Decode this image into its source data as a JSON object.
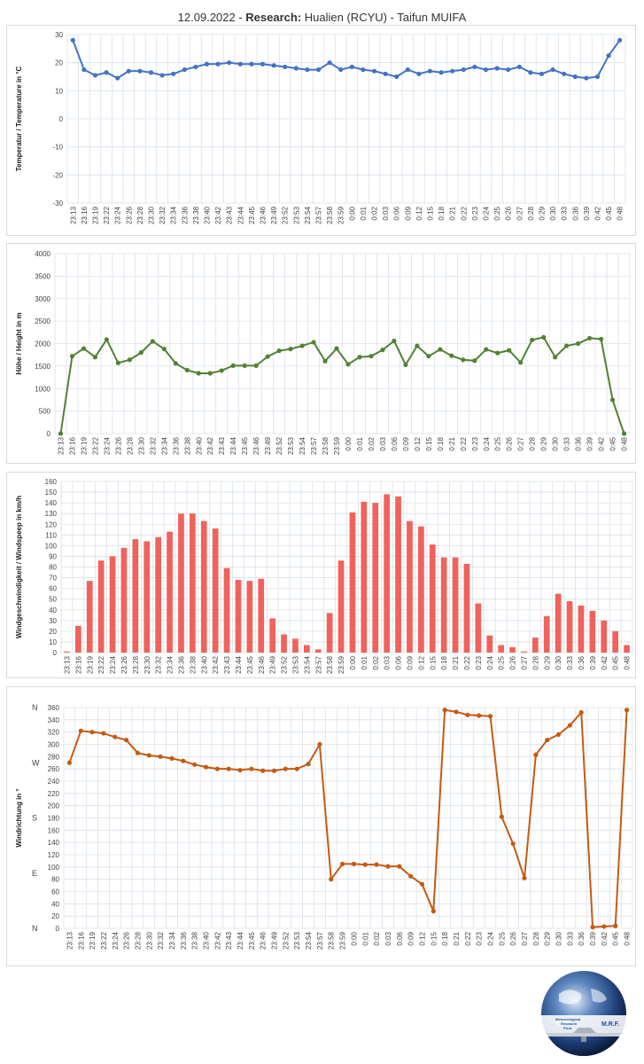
{
  "title": {
    "date": "12.09.2022 - ",
    "bold": "Research:",
    "rest": " Hualien (RCYU) - Taifun MUIFA"
  },
  "logo": {
    "line1": "Meteorological",
    "line2": "Research",
    "line3": "Fleet",
    "abbr": "M.R.F."
  },
  "colors": {
    "temperature": "#4472c4",
    "height": "#538135",
    "speed": "#f0625b",
    "direction": "#c55a11"
  },
  "chart_data": [
    {
      "type": "line",
      "ylabel": "Temperatur / Temperature in °C",
      "ylim": [
        -30,
        30
      ],
      "yticks": [
        -30,
        -20,
        -10,
        0,
        10,
        20,
        30
      ],
      "categories": [
        "23:13",
        "23:16",
        "23:19",
        "23:22",
        "23:24",
        "23:26",
        "23:28",
        "23:30",
        "23:32",
        "23:34",
        "23:36",
        "23:38",
        "23:40",
        "23:42",
        "23:43",
        "23:44",
        "23:45",
        "23:46",
        "23:49",
        "23:52",
        "23:53",
        "23:54",
        "23:57",
        "23:58",
        "23:59",
        "0:00",
        "0:01",
        "0:02",
        "0:03",
        "0:06",
        "0:09",
        "0:12",
        "0:15",
        "0:18",
        "0:21",
        "0:22",
        "0:23",
        "0:24",
        "0:25",
        "0:26",
        "0:27",
        "0:28",
        "0:29",
        "0:30",
        "0:33",
        "0:36",
        "0:39",
        "0:42",
        "0:45",
        "0:48"
      ],
      "values": [
        28,
        17.5,
        15.5,
        16.5,
        14.5,
        17,
        17,
        16.5,
        15.5,
        16,
        17.5,
        18.5,
        19.5,
        19.5,
        20,
        19.5,
        19.5,
        19.5,
        19,
        18.5,
        18,
        17.5,
        17.5,
        20,
        17.5,
        18.5,
        17.5,
        17,
        16,
        15,
        17.5,
        16,
        17,
        16.5,
        17,
        17.5,
        18.5,
        17.5,
        18,
        17.5,
        18.5,
        16.5,
        16,
        17.5,
        16,
        15,
        14.5,
        15,
        22.5,
        28
      ]
    },
    {
      "type": "line",
      "ylabel": "Höhe / Height in m",
      "ylim": [
        0,
        4000
      ],
      "yticks": [
        0,
        500,
        1000,
        1500,
        2000,
        2500,
        3000,
        3500,
        4000
      ],
      "categories": [
        "23:13",
        "23:16",
        "23:19",
        "23:22",
        "23:24",
        "23:26",
        "23:28",
        "23:30",
        "23:32",
        "23:34",
        "23:36",
        "23:38",
        "23:40",
        "23:42",
        "23:43",
        "23:44",
        "23:45",
        "23:46",
        "23:49",
        "23:52",
        "23:53",
        "23:54",
        "23:57",
        "23:58",
        "23:59",
        "0:00",
        "0:01",
        "0:02",
        "0:03",
        "0:06",
        "0:09",
        "0:12",
        "0:15",
        "0:18",
        "0:21",
        "0:22",
        "0:23",
        "0:24",
        "0:25",
        "0:26",
        "0:27",
        "0:28",
        "0:29",
        "0:30",
        "0:33",
        "0:36",
        "0:39",
        "0:42",
        "0:45",
        "0:48"
      ],
      "values": [
        0,
        1720,
        1890,
        1700,
        2090,
        1570,
        1640,
        1800,
        2050,
        1880,
        1560,
        1410,
        1340,
        1340,
        1400,
        1510,
        1510,
        1510,
        1710,
        1840,
        1880,
        1950,
        2030,
        1610,
        1890,
        1540,
        1700,
        1720,
        1860,
        2060,
        1530,
        1950,
        1720,
        1870,
        1730,
        1640,
        1620,
        1870,
        1790,
        1850,
        1580,
        2080,
        2140,
        1700,
        1950,
        2000,
        2120,
        2100,
        750,
        0
      ]
    },
    {
      "type": "bar",
      "ylabel": "Windgeschwindigkeit / Windspeep in km/h",
      "ylim": [
        0,
        160
      ],
      "yticks": [
        0,
        10,
        20,
        30,
        40,
        50,
        60,
        70,
        80,
        90,
        100,
        110,
        120,
        130,
        140,
        150,
        160
      ],
      "categories": [
        "23:13",
        "23:16",
        "23:19",
        "23:22",
        "23:24",
        "23:26",
        "23:28",
        "23:30",
        "23:32",
        "23:34",
        "23:36",
        "23:38",
        "23:40",
        "23:42",
        "23:43",
        "23:44",
        "23:45",
        "23:46",
        "23:49",
        "23:52",
        "23:53",
        "23:54",
        "23:57",
        "23:58",
        "23:59",
        "0:00",
        "0:01",
        "0:02",
        "0:03",
        "0:06",
        "0:09",
        "0:12",
        "0:15",
        "0:18",
        "0:21",
        "0:22",
        "0:23",
        "0:24",
        "0:25",
        "0:26",
        "0:27",
        "0:28",
        "0:29",
        "0:30",
        "0:33",
        "0:36",
        "0:39",
        "0:42",
        "0:45",
        "0:48"
      ],
      "values": [
        1,
        25,
        67,
        86,
        90,
        98,
        106,
        104,
        108,
        113,
        130,
        130,
        123,
        116,
        79,
        68,
        67,
        69,
        32,
        17,
        13,
        7,
        3,
        37,
        86,
        131,
        141,
        140,
        148,
        146,
        123,
        118,
        101,
        89,
        89,
        83,
        46,
        16,
        7,
        5,
        1,
        14,
        34,
        55,
        48,
        44,
        39,
        30,
        20,
        7
      ]
    },
    {
      "type": "line",
      "ylabel": "Windrichtung in °",
      "ylim": [
        0,
        360
      ],
      "yticks": [
        0,
        20,
        40,
        60,
        80,
        100,
        120,
        140,
        160,
        180,
        200,
        220,
        240,
        260,
        280,
        300,
        320,
        340,
        360
      ],
      "compass": [
        {
          "label": "N",
          "value": 0
        },
        {
          "label": "E",
          "value": 90
        },
        {
          "label": "S",
          "value": 180
        },
        {
          "label": "W",
          "value": 270
        },
        {
          "label": "N",
          "value": 360
        }
      ],
      "categories": [
        "23:13",
        "23:16",
        "23:19",
        "23:22",
        "23:24",
        "23:26",
        "23:28",
        "23:30",
        "23:32",
        "23:34",
        "23:36",
        "23:38",
        "23:40",
        "23:42",
        "23:43",
        "23:44",
        "23:45",
        "23:46",
        "23:49",
        "23:52",
        "23:53",
        "23:54",
        "23:57",
        "23:58",
        "23:59",
        "0:00",
        "0:01",
        "0:02",
        "0:03",
        "0:06",
        "0:09",
        "0:12",
        "0:15",
        "0:18",
        "0:21",
        "0:22",
        "0:23",
        "0:24",
        "0:25",
        "0:26",
        "0:27",
        "0:28",
        "0:29",
        "0:30",
        "0:33",
        "0:36",
        "0:39",
        "0:42",
        "0:45",
        "0:48"
      ],
      "values": [
        270,
        322,
        320,
        318,
        312,
        307,
        286,
        282,
        280,
        277,
        273,
        267,
        263,
        260,
        260,
        258,
        260,
        257,
        257,
        260,
        260,
        268,
        300,
        80,
        105,
        105,
        104,
        104,
        101,
        101,
        85,
        72,
        28,
        356,
        353,
        348,
        347,
        346,
        182,
        138,
        82,
        283,
        307,
        316,
        331,
        352,
        2,
        3,
        4,
        356
      ]
    }
  ]
}
